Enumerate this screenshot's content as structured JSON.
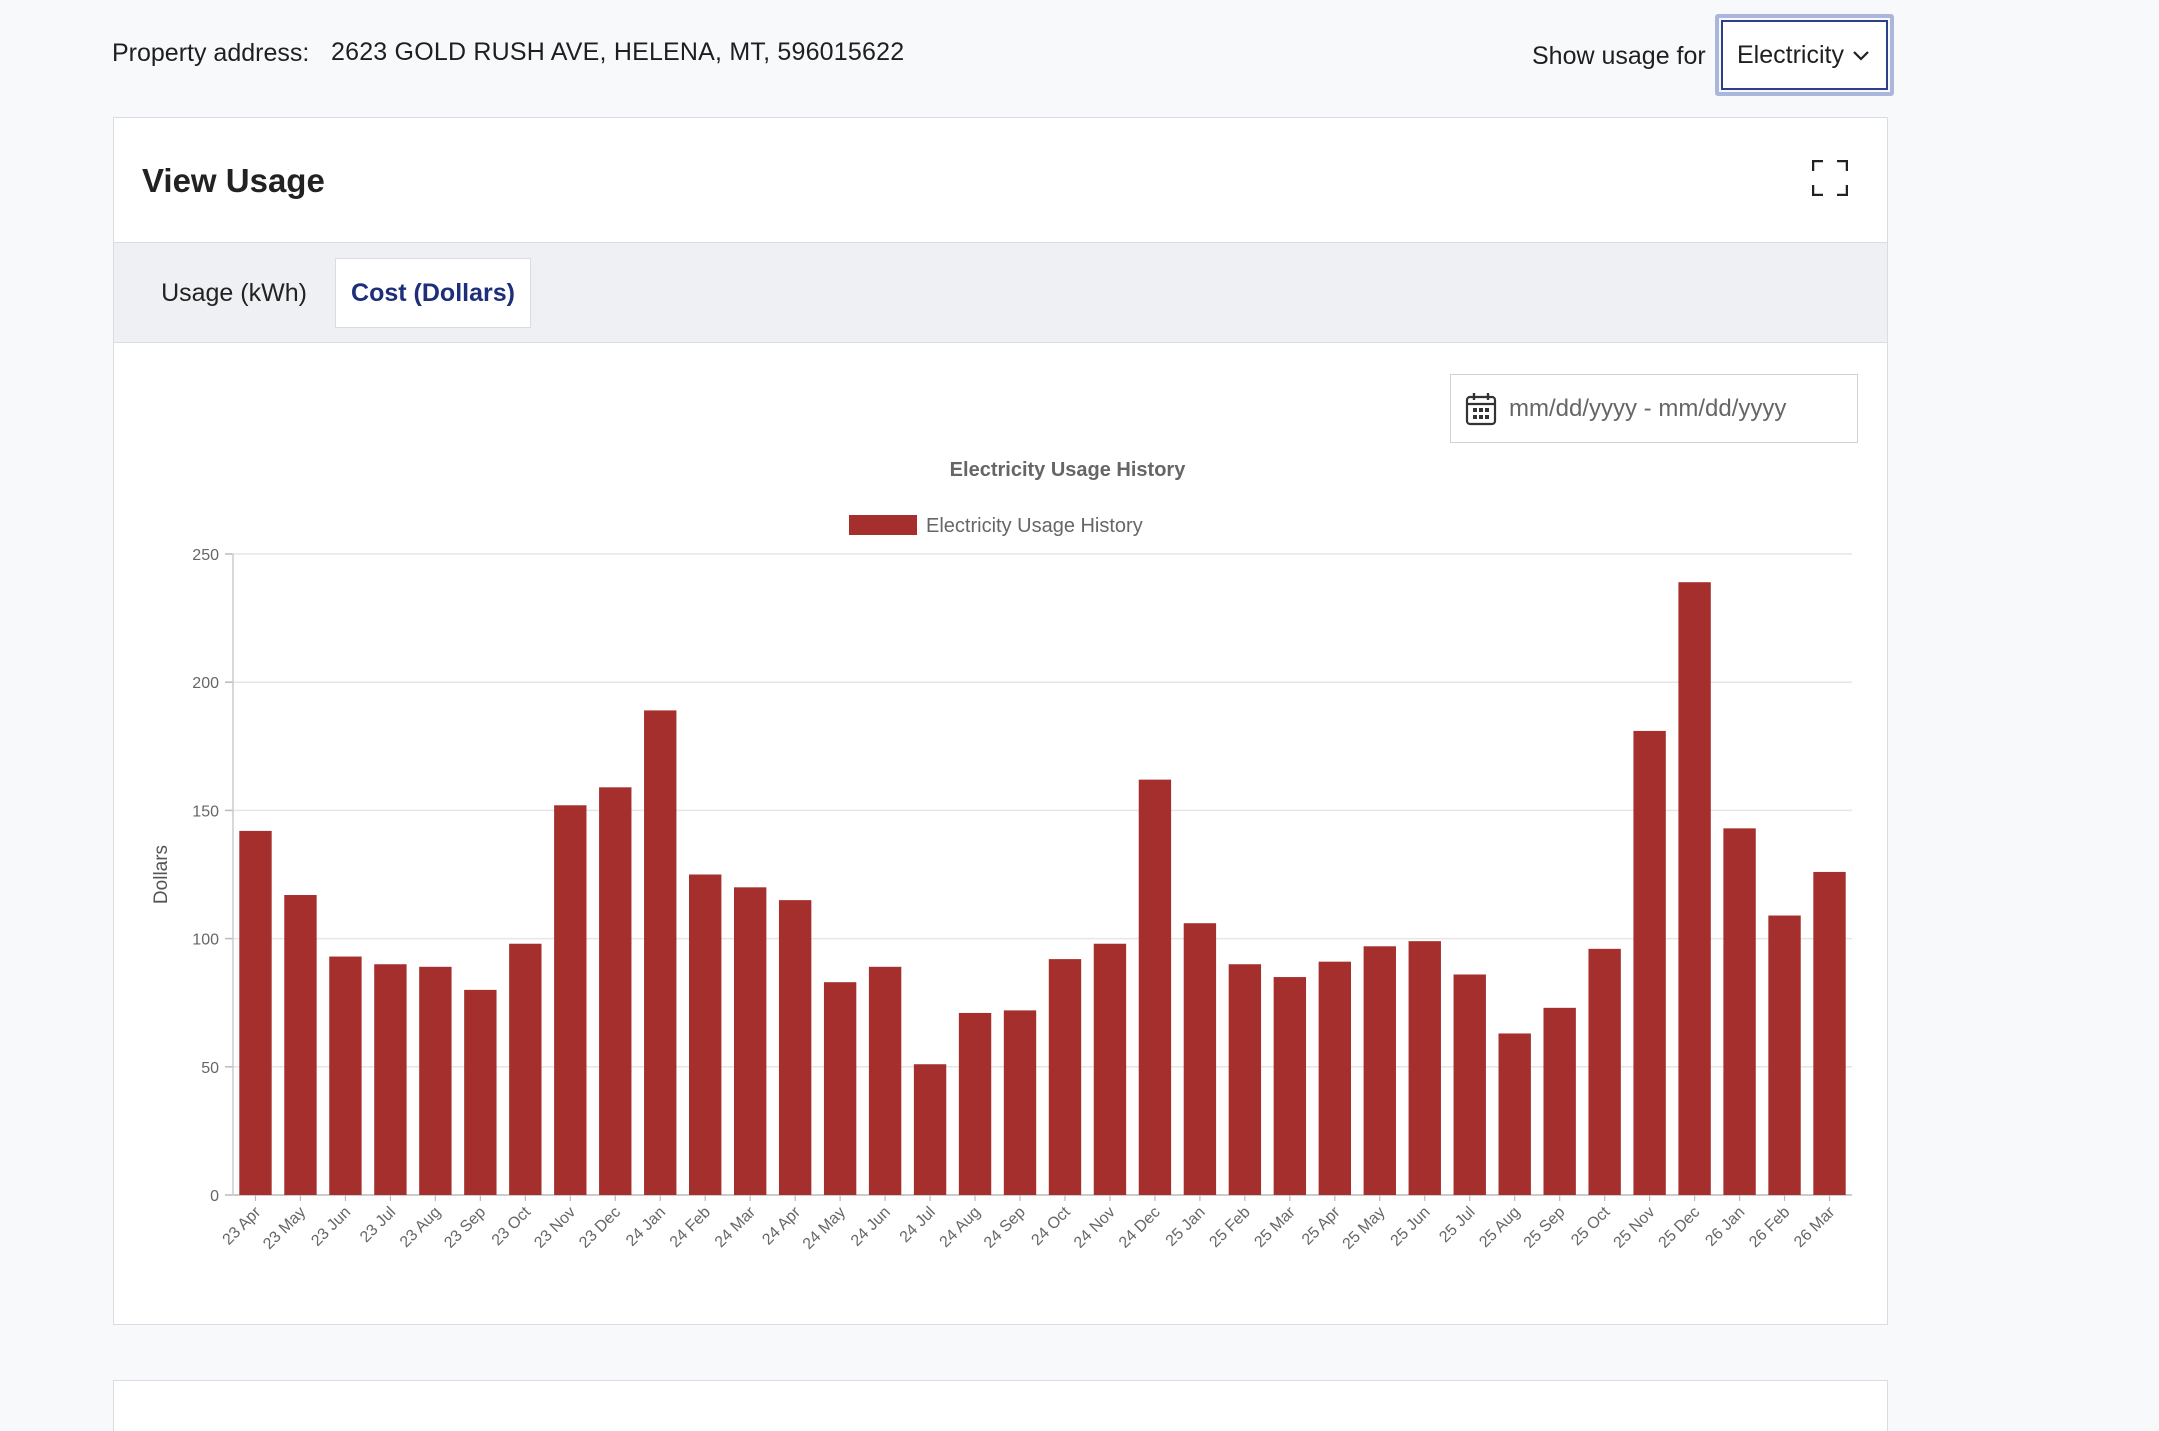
{
  "header": {
    "address_label": "Property address:",
    "address_value": "2623 GOLD RUSH AVE, HELENA, MT, 596015622",
    "show_usage_label": "Show usage for",
    "utility_selected": "Electricity"
  },
  "card": {
    "title": "View Usage",
    "tabs": [
      {
        "label": "Usage (kWh)",
        "active": false
      },
      {
        "label": "Cost (Dollars)",
        "active": true
      }
    ],
    "date_range_placeholder": "mm/dd/yyyy - mm/dd/yyyy"
  },
  "colors": {
    "bar": "#a52f2c",
    "active_tab_text": "#1d2f7a",
    "select_focus_ring": "#aab6dc"
  },
  "icons": {
    "expand": "expand-icon",
    "calendar": "calendar-icon",
    "dropdown": "chevron-down-icon"
  },
  "chart_data": {
    "type": "bar",
    "title": "Electricity Usage History",
    "legend": [
      "Electricity Usage History"
    ],
    "legend_position": "top",
    "xlabel": "",
    "ylabel": "Dollars",
    "ylim": [
      0,
      250
    ],
    "yticks": [
      0,
      50,
      100,
      150,
      200,
      250
    ],
    "grid": true,
    "categories": [
      "23 Apr",
      "23 May",
      "23 Jun",
      "23 Jul",
      "23 Aug",
      "23 Sep",
      "23 Oct",
      "23 Nov",
      "23 Dec",
      "24 Jan",
      "24 Feb",
      "24 Mar",
      "24 Apr",
      "24 May",
      "24 Jun",
      "24 Jul",
      "24 Aug",
      "24 Sep",
      "24 Oct",
      "24 Nov",
      "24 Dec",
      "25 Jan",
      "25 Feb",
      "25 Mar",
      "25 Apr",
      "25 May",
      "25 Jun",
      "25 Jul",
      "25 Aug",
      "25 Sep",
      "25 Oct",
      "25 Nov",
      "25 Dec",
      "26 Jan",
      "26 Feb",
      "26 Mar"
    ],
    "series": [
      {
        "name": "Electricity Usage History",
        "values": [
          142,
          117,
          93,
          90,
          89,
          80,
          98,
          152,
          159,
          189,
          125,
          120,
          115,
          83,
          89,
          51,
          71,
          72,
          92,
          98,
          162,
          106,
          90,
          85,
          91,
          97,
          99,
          86,
          63,
          73,
          96,
          181,
          239,
          143,
          109,
          126
        ]
      }
    ]
  }
}
